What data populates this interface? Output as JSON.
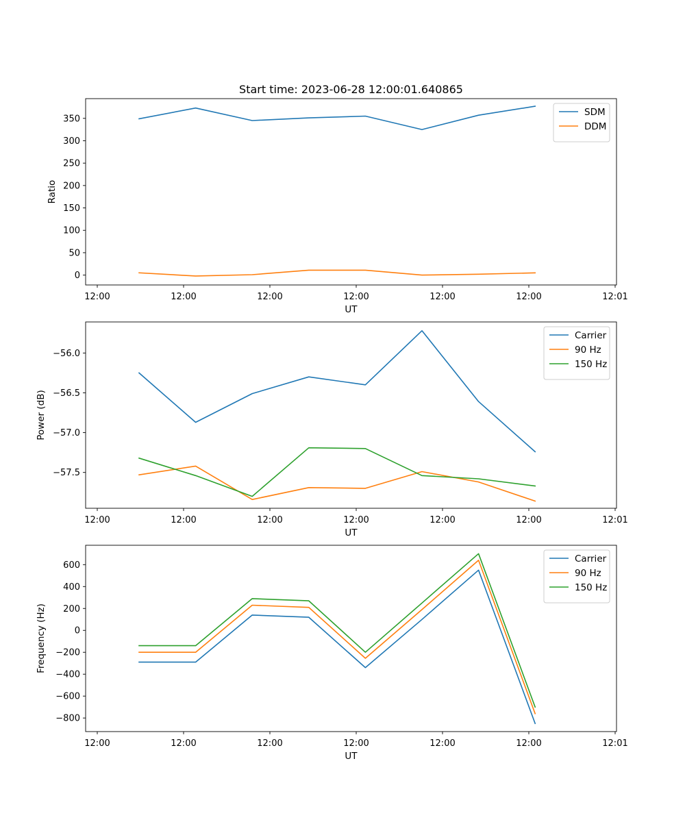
{
  "title": "Start time: 2023-06-28 12:00:01.640865",
  "chart_data": [
    {
      "type": "line",
      "xlabel": "UT",
      "ylabel": "Ratio",
      "xtick_labels": [
        "12:00",
        "12:00",
        "12:00",
        "12:00",
        "12:00",
        "12:00",
        "12:01"
      ],
      "ylim": [
        -22,
        394
      ],
      "yticks": [
        0,
        50,
        100,
        150,
        200,
        250,
        300,
        350
      ],
      "grid": false,
      "legend": "top-right",
      "series": [
        {
          "name": "SDM",
          "color": "#1f77b4",
          "values": [
            349,
            373,
            345,
            351,
            355,
            325,
            357,
            377
          ]
        },
        {
          "name": "DDM",
          "color": "#ff7f0e",
          "values": [
            5,
            -2,
            1,
            11,
            11,
            0,
            2,
            5
          ]
        }
      ]
    },
    {
      "type": "line",
      "xlabel": "UT",
      "ylabel": "Power (dB)",
      "xtick_labels": [
        "12:00",
        "12:00",
        "12:00",
        "12:00",
        "12:00",
        "12:00",
        "12:01"
      ],
      "ylim": [
        -57.95,
        -55.61
      ],
      "yticks": [
        -57.5,
        -57.0,
        -56.5,
        -56.0
      ],
      "ytick_labels": [
        "−57.5",
        "−57.0",
        "−56.5",
        "−56.0"
      ],
      "grid": false,
      "legend": "top-right",
      "series": [
        {
          "name": "Carrier",
          "color": "#1f77b4",
          "values": [
            -56.25,
            -56.87,
            -56.51,
            -56.3,
            -56.4,
            -55.72,
            -56.61,
            -57.24
          ]
        },
        {
          "name": "90 Hz",
          "color": "#ff7f0e",
          "values": [
            -57.53,
            -57.42,
            -57.84,
            -57.69,
            -57.7,
            -57.49,
            -57.62,
            -57.86
          ]
        },
        {
          "name": "150 Hz",
          "color": "#2ca02c",
          "values": [
            -57.32,
            -57.54,
            -57.8,
            -57.19,
            -57.2,
            -57.54,
            -57.58,
            -57.67
          ]
        }
      ]
    },
    {
      "type": "line",
      "xlabel": "UT",
      "ylabel": "Frequency (Hz)",
      "xtick_labels": [
        "12:00",
        "12:00",
        "12:00",
        "12:00",
        "12:00",
        "12:00",
        "12:01"
      ],
      "ylim": [
        -924,
        777
      ],
      "yticks": [
        -800,
        -600,
        -400,
        -200,
        0,
        200,
        400,
        600
      ],
      "ytick_labels": [
        "−800",
        "−600",
        "−400",
        "−200",
        "0",
        "200",
        "400",
        "600"
      ],
      "grid": false,
      "legend": "top-right",
      "series": [
        {
          "name": "Carrier",
          "color": "#1f77b4",
          "values": [
            -290,
            -290,
            140,
            120,
            -340,
            100,
            550,
            -850
          ]
        },
        {
          "name": "90 Hz",
          "color": "#ff7f0e",
          "values": [
            -200,
            -200,
            230,
            210,
            -255,
            190,
            640,
            -760
          ]
        },
        {
          "name": "150 Hz",
          "color": "#2ca02c",
          "values": [
            -140,
            -140,
            290,
            270,
            -200,
            250,
            700,
            -700
          ]
        }
      ]
    }
  ]
}
